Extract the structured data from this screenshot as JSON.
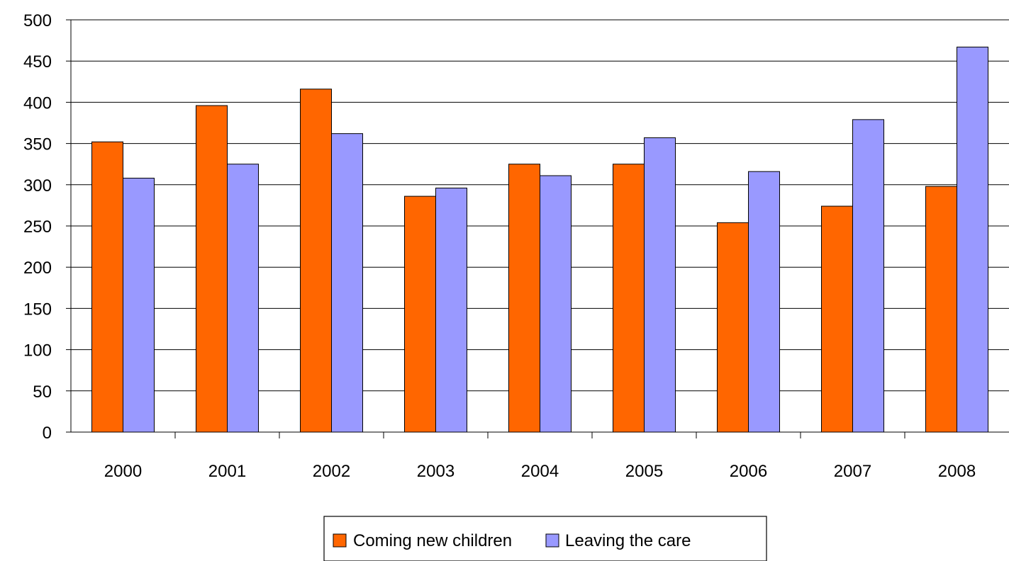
{
  "chart_data": {
    "type": "bar",
    "categories": [
      "2000",
      "2001",
      "2002",
      "2003",
      "2004",
      "2005",
      "2006",
      "2007",
      "2008"
    ],
    "series": [
      {
        "name": "Coming new children",
        "color": "#ff6600",
        "values": [
          352,
          396,
          416,
          286,
          325,
          325,
          254,
          274,
          298
        ]
      },
      {
        "name": "Leaving the care",
        "color": "#9999ff",
        "values": [
          308,
          325,
          362,
          296,
          311,
          357,
          316,
          379,
          467
        ]
      }
    ],
    "y_ticks": [
      "0",
      "50",
      "100",
      "150",
      "200",
      "250",
      "300",
      "350",
      "400",
      "450",
      "500"
    ],
    "ylim": [
      0,
      500
    ],
    "grid": true,
    "legend_position": "bottom"
  }
}
